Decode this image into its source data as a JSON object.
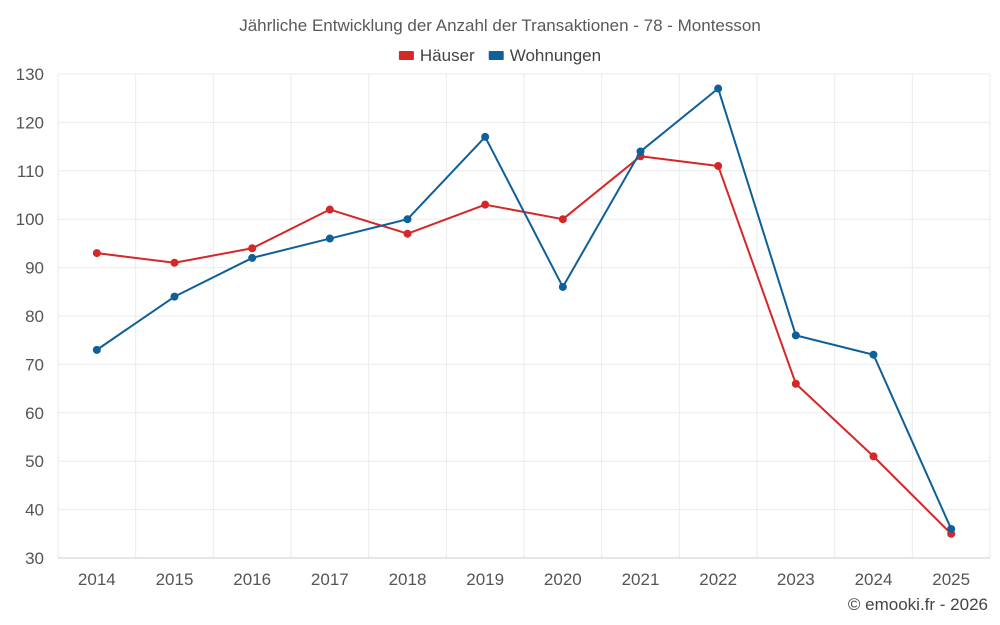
{
  "chart_data": {
    "type": "line",
    "title": "Jährliche Entwicklung der Anzahl der Transaktionen - 78 - Montesson",
    "categories": [
      "2014",
      "2015",
      "2016",
      "2017",
      "2018",
      "2019",
      "2020",
      "2021",
      "2022",
      "2023",
      "2024",
      "2025"
    ],
    "series": [
      {
        "name": "Häuser",
        "color": "#d62728",
        "values": [
          93,
          91,
          94,
          102,
          97,
          103,
          100,
          113,
          111,
          66,
          51,
          35
        ]
      },
      {
        "name": "Wohnungen",
        "color": "#0f5f98",
        "values": [
          73,
          84,
          92,
          96,
          100,
          117,
          86,
          114,
          127,
          76,
          72,
          36
        ]
      }
    ],
    "ylim": [
      30,
      130
    ],
    "yticks": [
      30,
      40,
      50,
      60,
      70,
      80,
      90,
      100,
      110,
      120,
      130
    ],
    "xlabel": "",
    "ylabel": "",
    "grid": true,
    "legend_position": "top-center"
  },
  "credit": "© emooki.fr - 2026"
}
